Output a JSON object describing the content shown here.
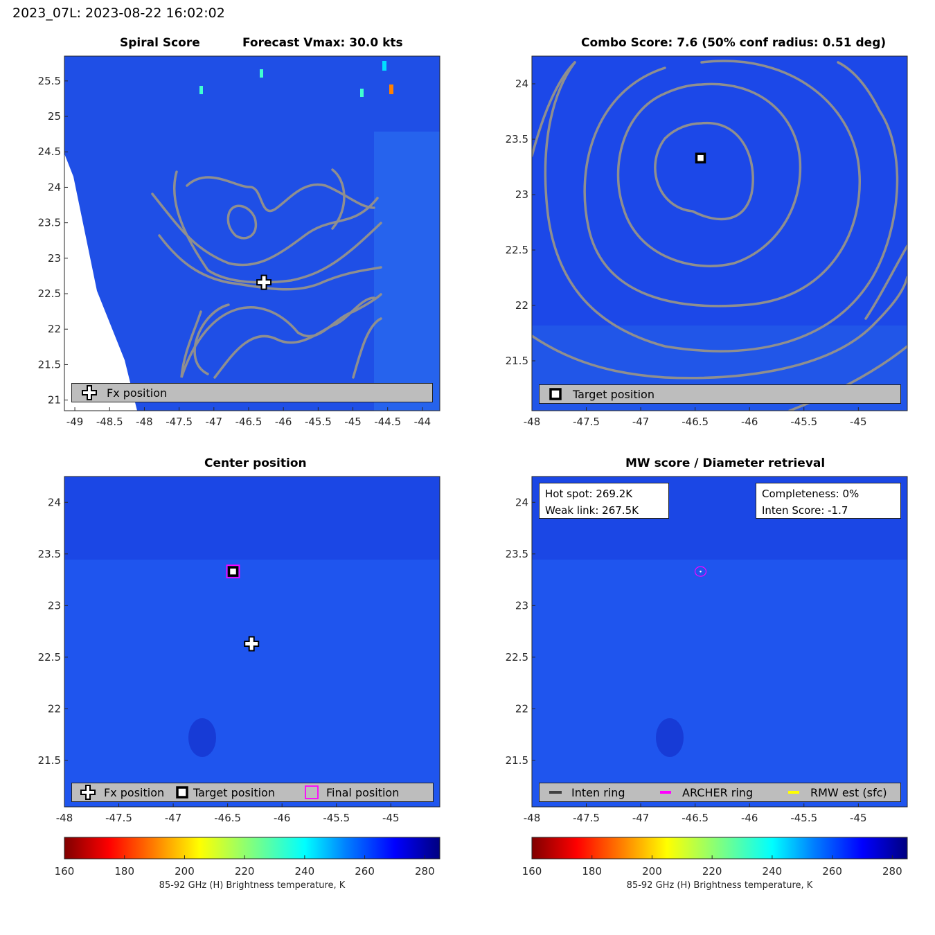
{
  "figure_title": "2023_07L: 2023-08-22 16:02:02",
  "colorbar": {
    "label": "85-92 GHz (H) Brightness temperature, K",
    "ticks": [
      "160",
      "180",
      "200",
      "220",
      "240",
      "260",
      "280"
    ],
    "range": [
      160,
      285
    ],
    "colormap": "jet-reversed"
  },
  "panels": {
    "spiral": {
      "title_left": "Spiral Score",
      "title_right": "Forecast Vmax: 30.0 kts",
      "legend": [
        "Fx position"
      ]
    },
    "combo": {
      "title": "Combo Score: 7.6  (50% conf radius: 0.51 deg)",
      "legend": [
        "Target position"
      ]
    },
    "center": {
      "title": "Center position",
      "legend": [
        "Fx position",
        "Target position",
        "Final position"
      ]
    },
    "mw": {
      "title": "MW score / Diameter retrieval",
      "hot_spot": "Hot spot: 269.2K",
      "weak_link": "Weak link: 267.5K",
      "completeness": "Completeness: 0%",
      "inten_score": "Inten Score: -1.7",
      "legend": [
        "Inten ring",
        "ARCHER ring",
        "RMW est (sfc)"
      ]
    }
  },
  "chart_data": [
    {
      "type": "heatmap",
      "title": "Spiral Score",
      "subtitle": "Forecast Vmax: 30.0 kts",
      "xlim": [
        -49.15,
        -43.75
      ],
      "ylim": [
        20.85,
        25.85
      ],
      "xticks": [
        "-49",
        "-48.5",
        "-48",
        "-47.5",
        "-47",
        "-46.5",
        "-46",
        "-45.5",
        "-45",
        "-44.5",
        "-44"
      ],
      "yticks": [
        "25.5",
        "25",
        "24.5",
        "24",
        "23.5",
        "23",
        "22.5",
        "22",
        "21.5",
        "21"
      ],
      "fx_position": {
        "lon": -46.28,
        "lat": 22.66
      }
    },
    {
      "type": "heatmap",
      "title": "Combo Score: 7.6  (50% conf radius: 0.51 deg)",
      "xlim": [
        -48,
        -44.55
      ],
      "ylim": [
        21.05,
        24.25
      ],
      "xticks": [
        "-48",
        "-47.5",
        "-47",
        "-46.5",
        "-46",
        "-45.5",
        "-45"
      ],
      "yticks": [
        "24",
        "23.5",
        "23",
        "22.5",
        "22",
        "21.5"
      ],
      "target_position": {
        "lon": -46.45,
        "lat": 23.33
      }
    },
    {
      "type": "heatmap",
      "title": "Center position",
      "xlim": [
        -48,
        -44.55
      ],
      "ylim": [
        21.05,
        24.25
      ],
      "xticks": [
        "-48",
        "-47.5",
        "-47",
        "-46.5",
        "-46",
        "-45.5",
        "-45"
      ],
      "yticks": [
        "24",
        "23.5",
        "23",
        "22.5",
        "22",
        "21.5"
      ],
      "fx_position": {
        "lon": -46.28,
        "lat": 22.63
      },
      "target_position": {
        "lon": -46.45,
        "lat": 23.33
      },
      "final_position": {
        "lon": -46.45,
        "lat": 23.33
      }
    },
    {
      "type": "heatmap",
      "title": "MW score / Diameter retrieval",
      "xlim": [
        -48,
        -44.55
      ],
      "ylim": [
        21.05,
        24.25
      ],
      "xticks": [
        "-48",
        "-47.5",
        "-47",
        "-46.5",
        "-46",
        "-45.5",
        "-45"
      ],
      "yticks": [
        "24",
        "23.5",
        "23",
        "22.5",
        "22",
        "21.5"
      ],
      "archer_ring_center": {
        "lon": -46.45,
        "lat": 23.33
      }
    }
  ]
}
